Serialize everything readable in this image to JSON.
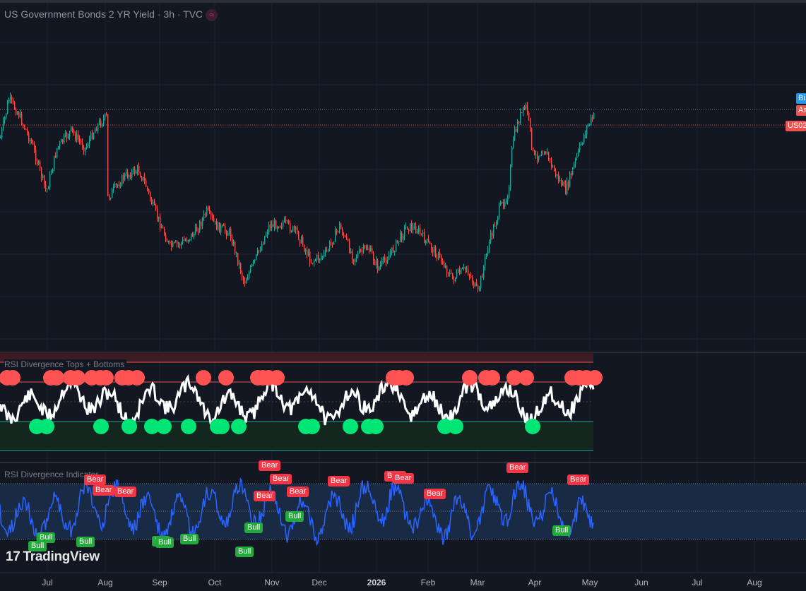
{
  "legend": {
    "title": "US Government Bonds 2 YR Yield · 3h · TVC",
    "icon": "wave-icon"
  },
  "panes": {
    "rsi_tops_title": "RSI Divergence Tops + Bottoms",
    "rsi_div_title": "RSI Divergence Indicator"
  },
  "price_tags": {
    "bid": "Bi",
    "ask": "As",
    "symbol": "US02"
  },
  "xaxis": {
    "labels": [
      "Jul",
      "Aug",
      "Sep",
      "Oct",
      "Nov",
      "Dec",
      "2026",
      "Feb",
      "Mar",
      "Apr",
      "May",
      "Jun",
      "Jul",
      "Aug"
    ]
  },
  "watermark": {
    "mark": "17",
    "text": "TradingView"
  },
  "signals": {
    "bear_label": "Bear",
    "bull_label": "Bull"
  },
  "colors": {
    "background": "#131722",
    "up": "#26a69a",
    "down": "#ef5350",
    "rsi_line": "#ffffff",
    "rsi_div_line": "#2962ff",
    "top_dot": "#ff5252",
    "bottom_dot": "#00e676",
    "bear": "#f23645",
    "bull": "#22ab3a"
  }
}
